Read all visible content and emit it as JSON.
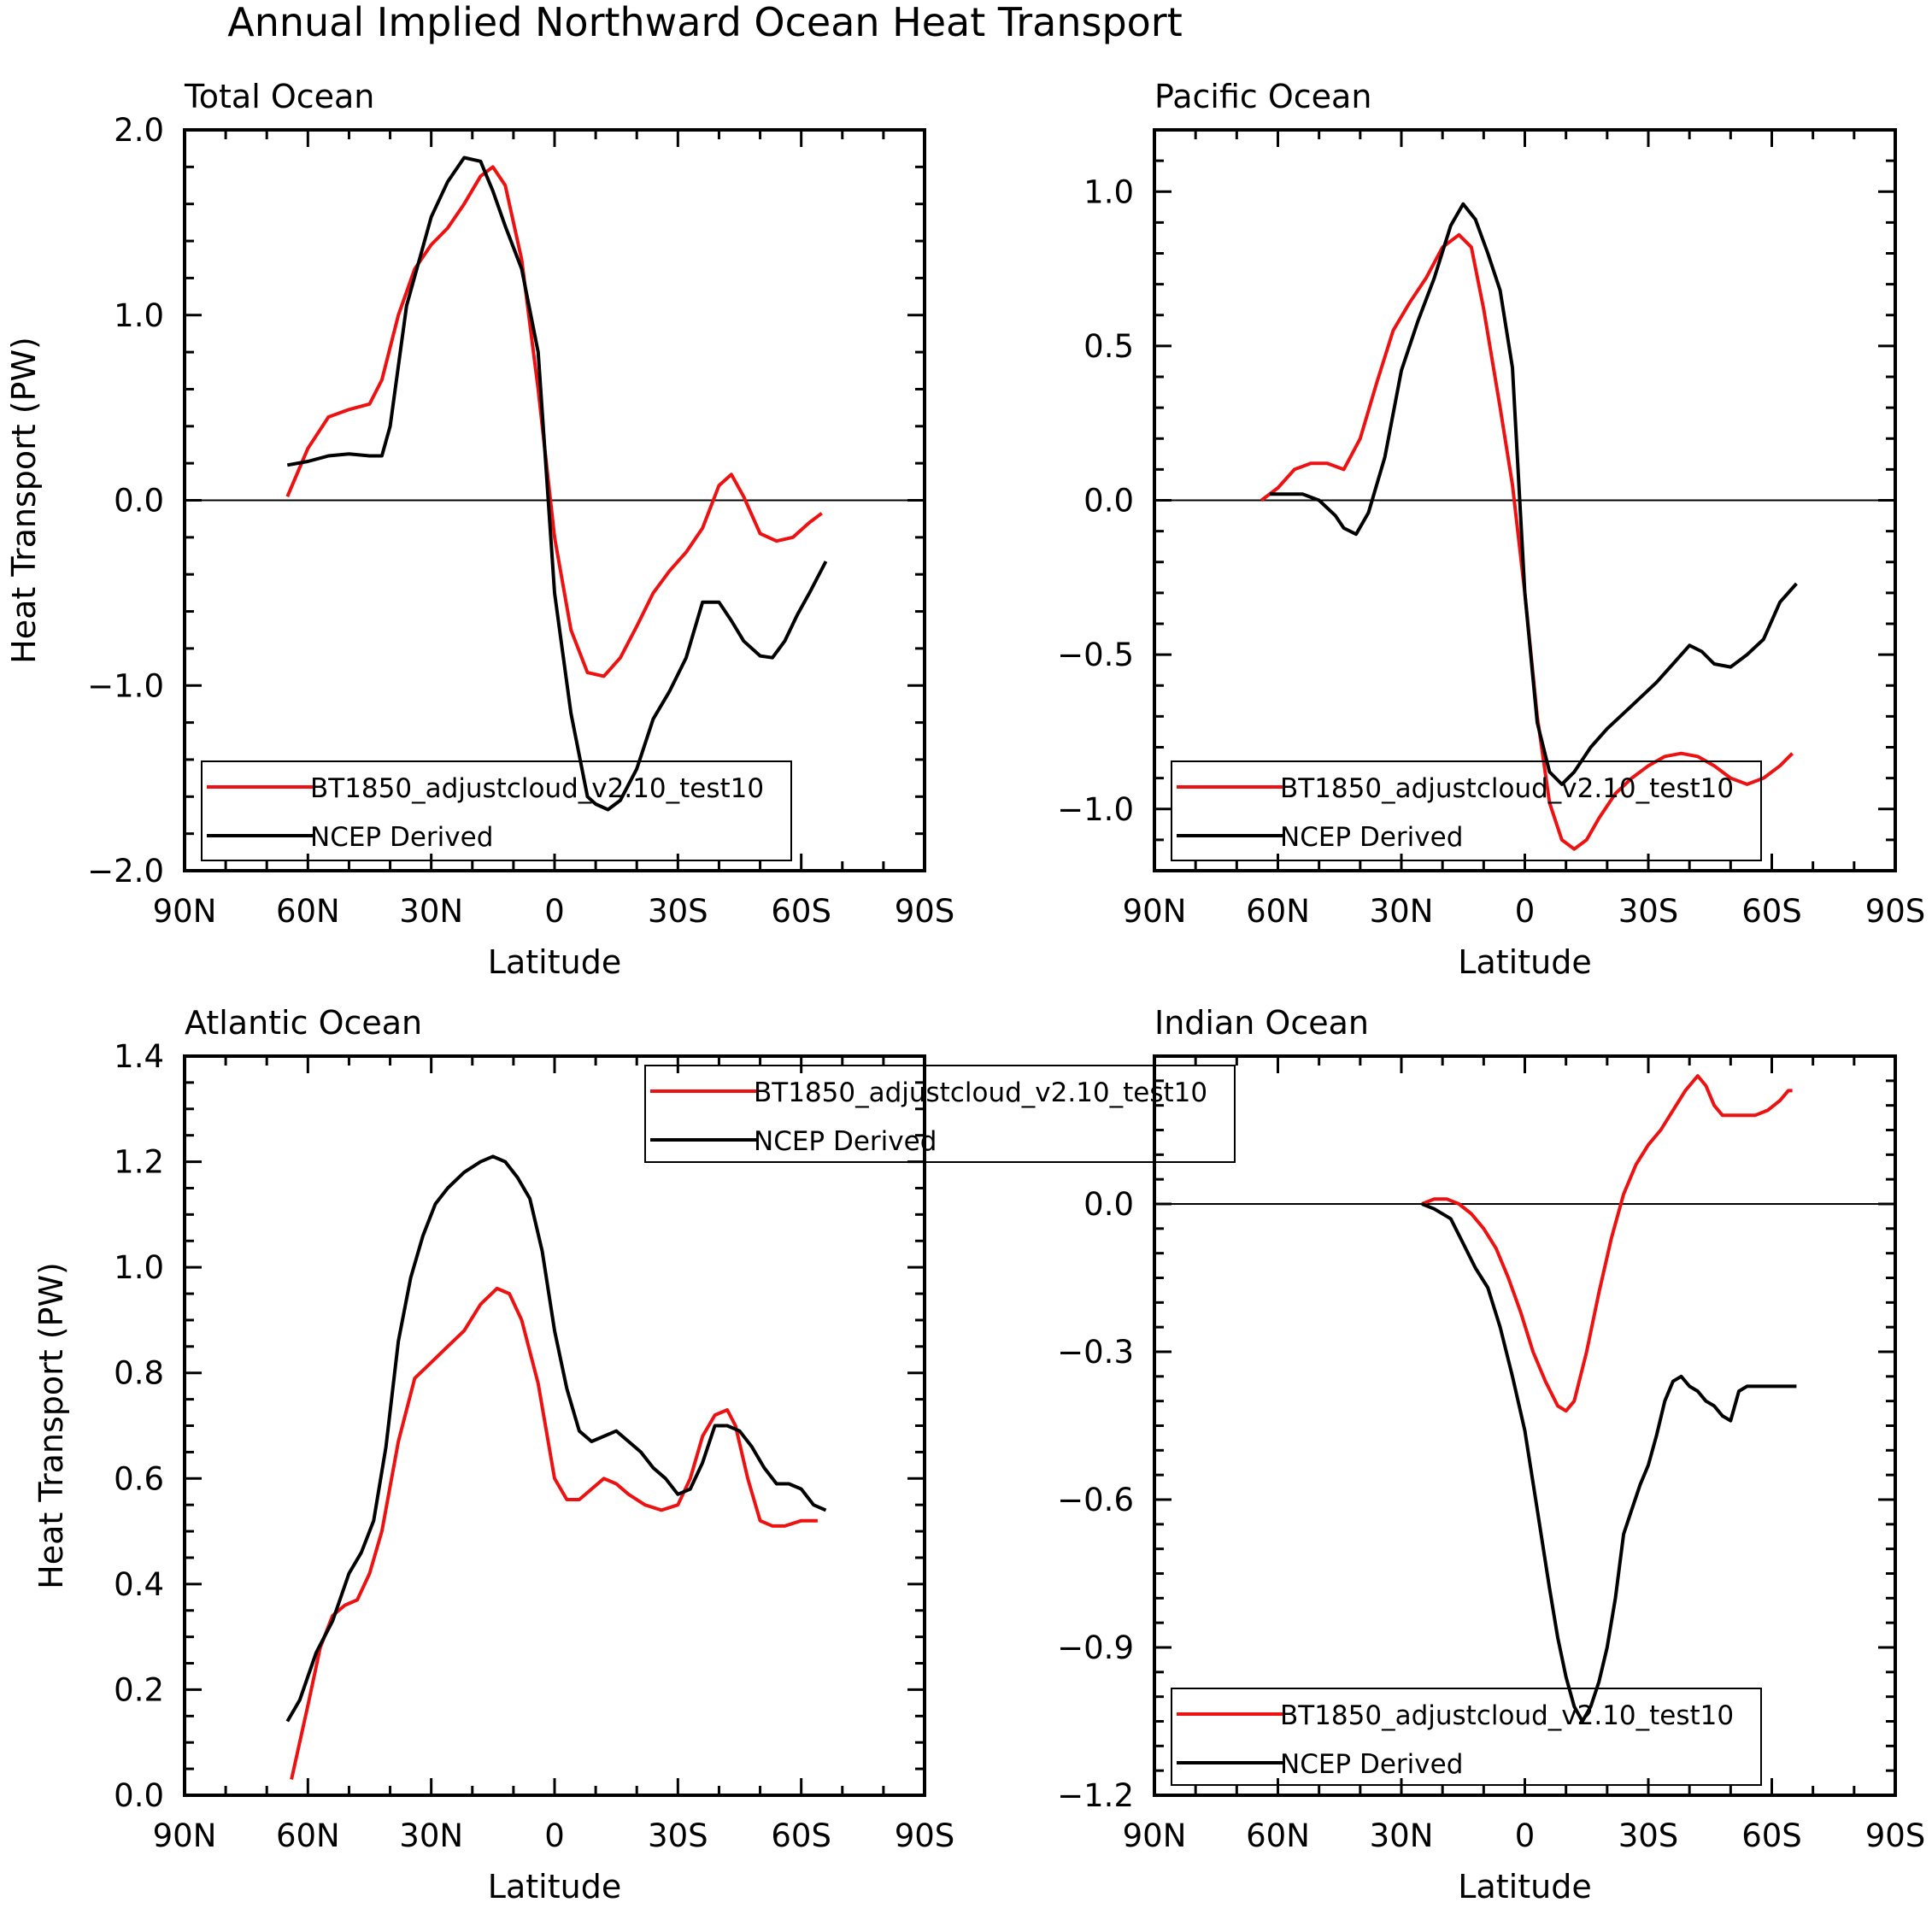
{
  "title": "Annual Implied Northward Ocean Heat Transport",
  "colors": {
    "model": "#ee1111",
    "ncep": "#000000"
  },
  "chart_data": [
    {
      "type": "line",
      "panel_title": "Total Ocean",
      "xlabel": "Latitude",
      "ylabel": "Heat Transport (PW)",
      "xlim": [
        -90,
        90
      ],
      "xticks": [
        -90,
        -60,
        -30,
        0,
        30,
        60,
        90
      ],
      "xtick_labels": [
        "90N",
        "60N",
        "30N",
        "0",
        "30S",
        "60S",
        "90S"
      ],
      "ylim": [
        -2.0,
        2.0
      ],
      "yticks": [
        -2.0,
        -1.0,
        0.0,
        1.0,
        2.0
      ],
      "ytick_labels": [
        "−2.0",
        "−1.0",
        "0.0",
        "1.0",
        "2.0"
      ],
      "yminor": 0.2,
      "legend_placement": "bottom-left",
      "series": [
        {
          "name": "BT1850_adjustcloud_v2.10_test10",
          "color": "#ee1111",
          "x": [
            -65,
            -60,
            -55,
            -50,
            -45,
            -42,
            -38,
            -34,
            -30,
            -26,
            -22,
            -18,
            -15,
            -12,
            -8,
            -4,
            0,
            4,
            8,
            12,
            16,
            20,
            24,
            28,
            32,
            36,
            40,
            43,
            46,
            50,
            54,
            58,
            62,
            65
          ],
          "y": [
            0.02,
            0.28,
            0.45,
            0.49,
            0.52,
            0.65,
            1.0,
            1.25,
            1.38,
            1.47,
            1.6,
            1.75,
            1.8,
            1.7,
            1.3,
            0.6,
            -0.2,
            -0.7,
            -0.93,
            -0.95,
            -0.85,
            -0.68,
            -0.5,
            -0.38,
            -0.28,
            -0.15,
            0.08,
            0.14,
            0.02,
            -0.18,
            -0.22,
            -0.2,
            -0.12,
            -0.07
          ]
        },
        {
          "name": "NCEP Derived",
          "color": "#000000",
          "x": [
            -65,
            -60,
            -55,
            -50,
            -45,
            -42,
            -40,
            -36,
            -30,
            -26,
            -22,
            -18,
            -15,
            -12,
            -8,
            -4,
            0,
            4,
            8,
            10,
            13,
            16,
            20,
            24,
            28,
            32,
            36,
            40,
            43,
            46,
            50,
            53,
            56,
            59,
            62,
            66
          ],
          "y": [
            0.19,
            0.21,
            0.24,
            0.25,
            0.24,
            0.24,
            0.4,
            1.05,
            1.53,
            1.72,
            1.85,
            1.83,
            1.67,
            1.48,
            1.25,
            0.8,
            -0.5,
            -1.15,
            -1.6,
            -1.64,
            -1.67,
            -1.62,
            -1.45,
            -1.18,
            -1.03,
            -0.85,
            -0.55,
            -0.55,
            -0.65,
            -0.76,
            -0.84,
            -0.85,
            -0.76,
            -0.62,
            -0.5,
            -0.33
          ]
        }
      ]
    },
    {
      "type": "line",
      "panel_title": "Pacific Ocean",
      "xlabel": "Latitude",
      "ylabel": "",
      "xlim": [
        -90,
        90
      ],
      "xticks": [
        -90,
        -60,
        -30,
        0,
        30,
        60,
        90
      ],
      "xtick_labels": [
        "90N",
        "60N",
        "30N",
        "0",
        "30S",
        "60S",
        "90S"
      ],
      "ylim": [
        -1.2,
        1.2
      ],
      "yticks": [
        -1.0,
        -0.5,
        0.0,
        0.5,
        1.0
      ],
      "ytick_labels": [
        "−1.0",
        "−0.5",
        "0.0",
        "0.5",
        "1.0"
      ],
      "yminor": 0.1,
      "legend_placement": "bottom-left",
      "series": [
        {
          "name": "BT1850_adjustcloud_v2.10_test10",
          "color": "#ee1111",
          "x": [
            -64,
            -60,
            -56,
            -52,
            -48,
            -44,
            -40,
            -36,
            -32,
            -28,
            -24,
            -20,
            -16,
            -13,
            -10,
            -6,
            -3,
            0,
            3,
            6,
            9,
            12,
            15,
            18,
            22,
            26,
            30,
            34,
            38,
            42,
            46,
            50,
            54,
            58,
            62,
            65
          ],
          "y": [
            0.0,
            0.04,
            0.1,
            0.12,
            0.12,
            0.1,
            0.2,
            0.38,
            0.55,
            0.64,
            0.72,
            0.82,
            0.86,
            0.82,
            0.62,
            0.3,
            0.05,
            -0.3,
            -0.7,
            -0.98,
            -1.1,
            -1.13,
            -1.1,
            -1.03,
            -0.95,
            -0.9,
            -0.86,
            -0.83,
            -0.82,
            -0.83,
            -0.86,
            -0.9,
            -0.92,
            -0.9,
            -0.86,
            -0.82
          ]
        },
        {
          "name": "NCEP Derived",
          "color": "#000000",
          "x": [
            -62,
            -58,
            -54,
            -50,
            -46,
            -44,
            -41,
            -38,
            -34,
            -30,
            -26,
            -22,
            -18,
            -15,
            -12,
            -9,
            -6,
            -3,
            0,
            3,
            6,
            9,
            12,
            16,
            20,
            24,
            28,
            32,
            36,
            40,
            43,
            46,
            50,
            54,
            58,
            62,
            66
          ],
          "y": [
            0.02,
            0.02,
            0.02,
            0.0,
            -0.05,
            -0.09,
            -0.11,
            -0.04,
            0.14,
            0.42,
            0.58,
            0.72,
            0.89,
            0.96,
            0.91,
            0.8,
            0.68,
            0.43,
            -0.3,
            -0.72,
            -0.88,
            -0.92,
            -0.88,
            -0.8,
            -0.74,
            -0.69,
            -0.64,
            -0.59,
            -0.53,
            -0.47,
            -0.49,
            -0.53,
            -0.54,
            -0.5,
            -0.45,
            -0.33,
            -0.27
          ]
        }
      ]
    },
    {
      "type": "line",
      "panel_title": "Atlantic Ocean",
      "xlabel": "Latitude",
      "ylabel": "Heat Transport (PW)",
      "xlim": [
        -90,
        90
      ],
      "xticks": [
        -90,
        -60,
        -30,
        0,
        30,
        60,
        90
      ],
      "xtick_labels": [
        "90N",
        "60N",
        "30N",
        "0",
        "30S",
        "60S",
        "90S"
      ],
      "ylim": [
        0.0,
        1.4
      ],
      "yticks": [
        0.0,
        0.2,
        0.4,
        0.6,
        0.8,
        1.0,
        1.2,
        1.4
      ],
      "ytick_labels": [
        "0.0",
        "0.2",
        "0.4",
        "0.6",
        "0.8",
        "1.0",
        "1.2",
        "1.4"
      ],
      "yminor": 0.05,
      "legend_placement": "top-center",
      "series": [
        {
          "name": "BT1850_adjustcloud_v2.10_test10",
          "color": "#ee1111",
          "x": [
            -64,
            -60,
            -57,
            -54,
            -51,
            -48,
            -45,
            -42,
            -38,
            -34,
            -30,
            -26,
            -22,
            -18,
            -14,
            -11,
            -8,
            -4,
            0,
            3,
            6,
            9,
            12,
            15,
            18,
            22,
            26,
            30,
            33,
            36,
            39,
            42,
            44,
            47,
            50,
            53,
            56,
            60,
            64
          ],
          "y": [
            0.03,
            0.17,
            0.28,
            0.34,
            0.36,
            0.37,
            0.42,
            0.5,
            0.67,
            0.79,
            0.82,
            0.85,
            0.88,
            0.93,
            0.96,
            0.95,
            0.9,
            0.78,
            0.6,
            0.56,
            0.56,
            0.58,
            0.6,
            0.59,
            0.57,
            0.55,
            0.54,
            0.55,
            0.6,
            0.68,
            0.72,
            0.73,
            0.7,
            0.6,
            0.52,
            0.51,
            0.51,
            0.52,
            0.52
          ]
        },
        {
          "name": "NCEP Derived",
          "color": "#000000",
          "x": [
            -65,
            -62,
            -58,
            -54,
            -50,
            -47,
            -44,
            -41,
            -38,
            -35,
            -32,
            -29,
            -26,
            -22,
            -18,
            -15,
            -12,
            -9,
            -6,
            -3,
            0,
            3,
            6,
            9,
            12,
            15,
            18,
            21,
            24,
            27,
            30,
            33,
            36,
            39,
            42,
            45,
            48,
            51,
            54,
            57,
            60,
            63,
            66
          ],
          "y": [
            0.14,
            0.18,
            0.27,
            0.33,
            0.42,
            0.46,
            0.52,
            0.66,
            0.86,
            0.98,
            1.06,
            1.12,
            1.15,
            1.18,
            1.2,
            1.21,
            1.2,
            1.17,
            1.13,
            1.03,
            0.88,
            0.77,
            0.69,
            0.67,
            0.68,
            0.69,
            0.67,
            0.65,
            0.62,
            0.6,
            0.57,
            0.58,
            0.63,
            0.7,
            0.7,
            0.69,
            0.66,
            0.62,
            0.59,
            0.59,
            0.58,
            0.55,
            0.54
          ]
        }
      ]
    },
    {
      "type": "line",
      "panel_title": "Indian Ocean",
      "xlabel": "Latitude",
      "ylabel": "",
      "xlim": [
        -90,
        90
      ],
      "xticks": [
        -90,
        -60,
        -30,
        0,
        30,
        60,
        90
      ],
      "xtick_labels": [
        "90N",
        "60N",
        "30N",
        "0",
        "30S",
        "60S",
        "90S"
      ],
      "ylim": [
        -1.2,
        0.3
      ],
      "yticks": [
        -1.2,
        -0.9,
        -0.6,
        -0.3,
        0.0
      ],
      "ytick_labels": [
        "−1.2",
        "−0.9",
        "−0.6",
        "−0.3",
        "0.0"
      ],
      "yminor": 0.05,
      "legend_placement": "bottom-left",
      "series": [
        {
          "name": "BT1850_adjustcloud_v2.10_test10",
          "color": "#ee1111",
          "x": [
            -25,
            -22,
            -19,
            -16,
            -13,
            -10,
            -7,
            -4,
            -1,
            2,
            5,
            8,
            10,
            12,
            15,
            18,
            21,
            24,
            27,
            30,
            33,
            36,
            39,
            42,
            44,
            46,
            48,
            50,
            53,
            56,
            59,
            62,
            64,
            65
          ],
          "y": [
            0.0,
            0.01,
            0.01,
            0.0,
            -0.02,
            -0.05,
            -0.09,
            -0.15,
            -0.22,
            -0.3,
            -0.36,
            -0.41,
            -0.42,
            -0.4,
            -0.3,
            -0.18,
            -0.07,
            0.02,
            0.08,
            0.12,
            0.15,
            0.19,
            0.23,
            0.26,
            0.24,
            0.2,
            0.18,
            0.18,
            0.18,
            0.18,
            0.19,
            0.21,
            0.23,
            0.23
          ]
        },
        {
          "name": "NCEP Derived",
          "color": "#000000",
          "x": [
            -25,
            -22,
            -18,
            -15,
            -12,
            -9,
            -6,
            -3,
            0,
            3,
            6,
            8,
            10,
            12,
            14,
            16,
            18,
            20,
            22,
            24,
            26,
            28,
            30,
            32,
            34,
            36,
            38,
            40,
            42,
            44,
            46,
            48,
            50,
            52,
            54,
            56,
            58,
            60,
            63,
            66
          ],
          "y": [
            0.0,
            -0.01,
            -0.03,
            -0.08,
            -0.13,
            -0.17,
            -0.25,
            -0.35,
            -0.46,
            -0.62,
            -0.78,
            -0.88,
            -0.96,
            -1.02,
            -1.05,
            -1.02,
            -0.97,
            -0.9,
            -0.8,
            -0.67,
            -0.62,
            -0.57,
            -0.53,
            -0.47,
            -0.4,
            -0.36,
            -0.35,
            -0.37,
            -0.38,
            -0.4,
            -0.41,
            -0.43,
            -0.44,
            -0.38,
            -0.37,
            -0.37,
            -0.37,
            -0.37,
            -0.37,
            -0.37
          ]
        }
      ]
    }
  ]
}
